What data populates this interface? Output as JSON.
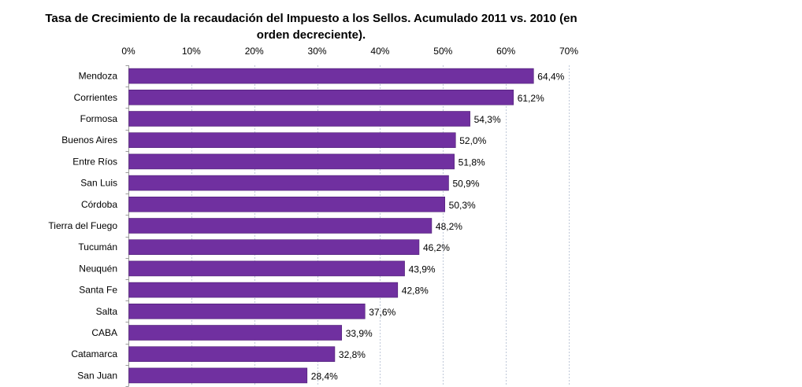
{
  "chart_data": {
    "type": "bar",
    "orientation": "horizontal",
    "title": "Tasa de Crecimiento de la recaudación del Impuesto a los Sellos. Acumulado 2011 vs. 2010 (en orden decreciente).",
    "title_lines": [
      "Tasa de Crecimiento de la recaudación del Impuesto a los Sellos. Acumulado 2011 vs. 2010 (en",
      "orden decreciente)."
    ],
    "categories": [
      "Mendoza",
      "Corrientes",
      "Formosa",
      "Buenos Aires",
      "Entre Ríos",
      "San Luis",
      "Córdoba",
      "Tierra del Fuego",
      "Tucumán",
      "Neuquén",
      "Santa Fe",
      "Salta",
      "CABA",
      "Catamarca",
      "San Juan"
    ],
    "values": [
      64.4,
      61.2,
      54.3,
      52.0,
      51.8,
      50.9,
      50.3,
      48.2,
      46.2,
      43.9,
      42.8,
      37.6,
      33.9,
      32.8,
      28.4
    ],
    "data_labels": [
      "64,4%",
      "61,2%",
      "54,3%",
      "52,0%",
      "51,8%",
      "50,9%",
      "50,3%",
      "48,2%",
      "46,2%",
      "43,9%",
      "42,8%",
      "37,6%",
      "33,9%",
      "32,8%",
      "28,4%"
    ],
    "x_ticks": [
      0,
      10,
      20,
      30,
      40,
      50,
      60,
      70
    ],
    "x_tick_labels": [
      "0%",
      "10%",
      "20%",
      "30%",
      "40%",
      "50%",
      "60%",
      "70%"
    ],
    "xlim": [
      0,
      70
    ],
    "x_axis_position": "top",
    "xlabel": "",
    "ylabel": "",
    "grid": true,
    "legend": "none",
    "bar_color": "#7030a0",
    "bar_outline_color": "#4d1f73",
    "grid_color": "#bfc8d8"
  }
}
